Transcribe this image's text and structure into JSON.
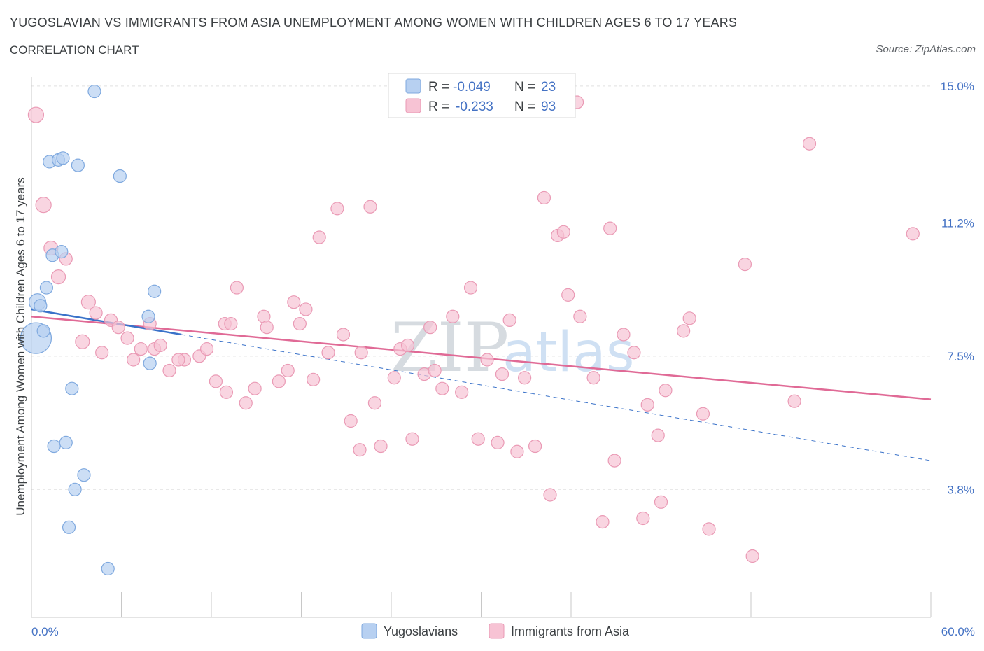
{
  "title": "YUGOSLAVIAN VS IMMIGRANTS FROM ASIA UNEMPLOYMENT AMONG WOMEN WITH CHILDREN AGES 6 TO 17 YEARS",
  "subtitle": "CORRELATION CHART",
  "source": "Source: ZipAtlas.com",
  "watermark": {
    "zip": "ZIP",
    "atlas": "atlas"
  },
  "legend": {
    "series1": {
      "r_label": "R =",
      "r_value": "-0.049",
      "n_label": "N =",
      "n_value": "23"
    },
    "series2": {
      "r_label": "R =",
      "r_value": "-0.233",
      "n_label": "N =",
      "n_value": "93"
    }
  },
  "colors": {
    "yugo_fill": "#b7d0f1",
    "yugo_stroke": "#7fa9df",
    "yugo_line": "#3a72c9",
    "asia_fill": "#f7c3d4",
    "asia_stroke": "#ea9ab5",
    "asia_line": "#e06a96",
    "tick": "#4472c4",
    "grid": "#e0e0e0"
  },
  "chart_data": {
    "type": "scatter",
    "xlabel": "",
    "ylabel": "Unemployment Among Women with Children Ages 6 to 17 years",
    "xlim": [
      0,
      60
    ],
    "ylim": [
      0.25,
      15.25
    ],
    "x_tick_labels": [
      {
        "value": 0,
        "label": "0.0%"
      },
      {
        "value": 60,
        "label": "60.0%"
      }
    ],
    "y_ticks": [
      {
        "value": 3.8,
        "label": "3.8%"
      },
      {
        "value": 7.5,
        "label": "7.5%"
      },
      {
        "value": 11.2,
        "label": "11.2%"
      },
      {
        "value": 15.0,
        "label": "15.0%"
      }
    ],
    "legend_position": "top-center",
    "series": [
      {
        "name": "Yugoslavians",
        "trend": {
          "x0": 0,
          "y0": 8.8,
          "x1": 10,
          "y1": 8.1,
          "extend_to": 60,
          "extend_y": 4.6
        },
        "points": [
          {
            "x": 0.3,
            "y": 8.0,
            "s": 22
          },
          {
            "x": 0.4,
            "y": 9.0,
            "s": 12
          },
          {
            "x": 0.6,
            "y": 8.9,
            "s": 9
          },
          {
            "x": 0.8,
            "y": 8.2,
            "s": 9
          },
          {
            "x": 1.0,
            "y": 9.4,
            "s": 9
          },
          {
            "x": 1.2,
            "y": 12.9,
            "s": 9
          },
          {
            "x": 1.4,
            "y": 10.3,
            "s": 9
          },
          {
            "x": 1.8,
            "y": 12.95,
            "s": 9
          },
          {
            "x": 2.1,
            "y": 13.0,
            "s": 9
          },
          {
            "x": 2.0,
            "y": 10.4,
            "s": 9
          },
          {
            "x": 3.1,
            "y": 12.8,
            "s": 9
          },
          {
            "x": 4.2,
            "y": 14.85,
            "s": 9
          },
          {
            "x": 5.9,
            "y": 12.5,
            "s": 9
          },
          {
            "x": 7.8,
            "y": 8.6,
            "s": 9
          },
          {
            "x": 8.2,
            "y": 9.3,
            "s": 9
          },
          {
            "x": 7.9,
            "y": 7.3,
            "s": 9
          },
          {
            "x": 2.7,
            "y": 6.6,
            "s": 9
          },
          {
            "x": 1.5,
            "y": 5.0,
            "s": 9
          },
          {
            "x": 2.3,
            "y": 5.1,
            "s": 9
          },
          {
            "x": 3.5,
            "y": 4.2,
            "s": 9
          },
          {
            "x": 2.9,
            "y": 3.8,
            "s": 9
          },
          {
            "x": 2.5,
            "y": 2.75,
            "s": 9
          },
          {
            "x": 5.1,
            "y": 1.6,
            "s": 9
          }
        ]
      },
      {
        "name": "Immigrants from Asia",
        "trend": {
          "x0": 0,
          "y0": 8.6,
          "x1": 60,
          "y1": 6.3
        },
        "points": [
          {
            "x": 0.3,
            "y": 14.2,
            "s": 11
          },
          {
            "x": 0.8,
            "y": 11.7,
            "s": 11
          },
          {
            "x": 1.3,
            "y": 10.5,
            "s": 10
          },
          {
            "x": 1.8,
            "y": 9.7,
            "s": 10
          },
          {
            "x": 2.3,
            "y": 10.2,
            "s": 9
          },
          {
            "x": 3.4,
            "y": 7.9,
            "s": 10
          },
          {
            "x": 3.8,
            "y": 9.0,
            "s": 10
          },
          {
            "x": 4.3,
            "y": 8.7,
            "s": 9
          },
          {
            "x": 4.7,
            "y": 7.6,
            "s": 9
          },
          {
            "x": 5.3,
            "y": 8.5,
            "s": 9
          },
          {
            "x": 5.8,
            "y": 8.3,
            "s": 9
          },
          {
            "x": 6.4,
            "y": 8.0,
            "s": 9
          },
          {
            "x": 6.8,
            "y": 7.4,
            "s": 9
          },
          {
            "x": 7.3,
            "y": 7.7,
            "s": 9
          },
          {
            "x": 7.9,
            "y": 8.4,
            "s": 9
          },
          {
            "x": 8.2,
            "y": 7.7,
            "s": 9
          },
          {
            "x": 8.6,
            "y": 7.8,
            "s": 9
          },
          {
            "x": 9.2,
            "y": 7.1,
            "s": 9
          },
          {
            "x": 10.2,
            "y": 7.4,
            "s": 9
          },
          {
            "x": 11.2,
            "y": 7.5,
            "s": 9
          },
          {
            "x": 11.7,
            "y": 7.7,
            "s": 9
          },
          {
            "x": 12.3,
            "y": 6.8,
            "s": 9
          },
          {
            "x": 12.9,
            "y": 8.4,
            "s": 9
          },
          {
            "x": 13.3,
            "y": 8.4,
            "s": 9
          },
          {
            "x": 13.7,
            "y": 9.4,
            "s": 9
          },
          {
            "x": 14.3,
            "y": 6.2,
            "s": 9
          },
          {
            "x": 14.9,
            "y": 6.6,
            "s": 9
          },
          {
            "x": 15.5,
            "y": 8.6,
            "s": 9
          },
          {
            "x": 15.7,
            "y": 8.3,
            "s": 9
          },
          {
            "x": 16.5,
            "y": 6.8,
            "s": 9
          },
          {
            "x": 17.1,
            "y": 7.1,
            "s": 9
          },
          {
            "x": 17.5,
            "y": 9.0,
            "s": 9
          },
          {
            "x": 17.9,
            "y": 8.4,
            "s": 9
          },
          {
            "x": 18.3,
            "y": 8.8,
            "s": 9
          },
          {
            "x": 18.8,
            "y": 6.85,
            "s": 9
          },
          {
            "x": 19.2,
            "y": 10.8,
            "s": 9
          },
          {
            "x": 19.8,
            "y": 7.6,
            "s": 9
          },
          {
            "x": 20.4,
            "y": 11.6,
            "s": 9
          },
          {
            "x": 20.8,
            "y": 8.1,
            "s": 9
          },
          {
            "x": 21.3,
            "y": 5.7,
            "s": 9
          },
          {
            "x": 21.9,
            "y": 4.9,
            "s": 9
          },
          {
            "x": 22.6,
            "y": 11.65,
            "s": 9
          },
          {
            "x": 22.9,
            "y": 6.2,
            "s": 9
          },
          {
            "x": 23.3,
            "y": 5.0,
            "s": 9
          },
          {
            "x": 24.2,
            "y": 6.9,
            "s": 9
          },
          {
            "x": 24.6,
            "y": 7.7,
            "s": 9
          },
          {
            "x": 25.1,
            "y": 7.8,
            "s": 9
          },
          {
            "x": 25.4,
            "y": 5.2,
            "s": 9
          },
          {
            "x": 26.2,
            "y": 7.0,
            "s": 9
          },
          {
            "x": 26.6,
            "y": 8.3,
            "s": 9
          },
          {
            "x": 26.9,
            "y": 7.1,
            "s": 9
          },
          {
            "x": 27.4,
            "y": 6.6,
            "s": 9
          },
          {
            "x": 28.1,
            "y": 8.6,
            "s": 9
          },
          {
            "x": 28.7,
            "y": 6.5,
            "s": 9
          },
          {
            "x": 29.3,
            "y": 9.4,
            "s": 9
          },
          {
            "x": 29.8,
            "y": 5.2,
            "s": 9
          },
          {
            "x": 30.4,
            "y": 7.4,
            "s": 9
          },
          {
            "x": 31.1,
            "y": 5.1,
            "s": 9
          },
          {
            "x": 31.4,
            "y": 7.0,
            "s": 9
          },
          {
            "x": 31.9,
            "y": 8.5,
            "s": 9
          },
          {
            "x": 32.4,
            "y": 4.85,
            "s": 9
          },
          {
            "x": 32.9,
            "y": 6.9,
            "s": 9
          },
          {
            "x": 33.6,
            "y": 5.0,
            "s": 9
          },
          {
            "x": 34.2,
            "y": 11.9,
            "s": 9
          },
          {
            "x": 34.6,
            "y": 3.65,
            "s": 9
          },
          {
            "x": 35.1,
            "y": 10.85,
            "s": 9
          },
          {
            "x": 35.5,
            "y": 10.95,
            "s": 9
          },
          {
            "x": 35.8,
            "y": 9.2,
            "s": 9
          },
          {
            "x": 36.4,
            "y": 14.55,
            "s": 9
          },
          {
            "x": 36.6,
            "y": 8.6,
            "s": 9
          },
          {
            "x": 37.5,
            "y": 6.9,
            "s": 9
          },
          {
            "x": 38.1,
            "y": 2.9,
            "s": 9
          },
          {
            "x": 38.6,
            "y": 11.05,
            "s": 9
          },
          {
            "x": 38.9,
            "y": 4.6,
            "s": 9
          },
          {
            "x": 39.5,
            "y": 8.1,
            "s": 9
          },
          {
            "x": 40.2,
            "y": 7.6,
            "s": 9
          },
          {
            "x": 40.8,
            "y": 3.0,
            "s": 9
          },
          {
            "x": 41.1,
            "y": 6.15,
            "s": 9
          },
          {
            "x": 41.8,
            "y": 5.3,
            "s": 9
          },
          {
            "x": 42.3,
            "y": 6.55,
            "s": 9
          },
          {
            "x": 42.0,
            "y": 3.45,
            "s": 9
          },
          {
            "x": 43.5,
            "y": 8.2,
            "s": 9
          },
          {
            "x": 43.9,
            "y": 8.55,
            "s": 9
          },
          {
            "x": 44.8,
            "y": 5.9,
            "s": 9
          },
          {
            "x": 45.2,
            "y": 2.7,
            "s": 9
          },
          {
            "x": 47.6,
            "y": 10.05,
            "s": 9
          },
          {
            "x": 48.1,
            "y": 1.95,
            "s": 9
          },
          {
            "x": 50.9,
            "y": 6.25,
            "s": 9
          },
          {
            "x": 51.9,
            "y": 13.4,
            "s": 9
          },
          {
            "x": 58.8,
            "y": 10.9,
            "s": 9
          },
          {
            "x": 9.8,
            "y": 7.4,
            "s": 9
          },
          {
            "x": 13.0,
            "y": 6.5,
            "s": 9
          },
          {
            "x": 22.0,
            "y": 7.6,
            "s": 9
          }
        ]
      }
    ]
  },
  "bottom_legend": {
    "item1": "Yugoslavians",
    "item2": "Immigrants from Asia"
  }
}
